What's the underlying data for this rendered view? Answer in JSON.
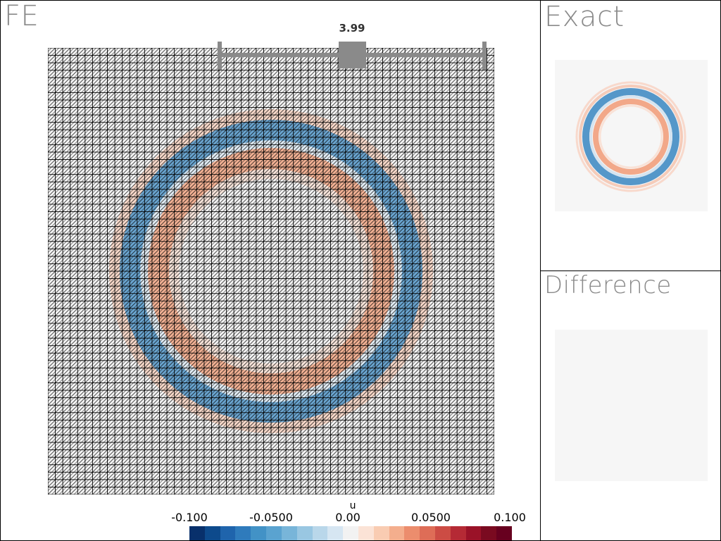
{
  "fe_panel": {
    "title": "FE"
  },
  "exact_panel": {
    "title": "Exact"
  },
  "difference_panel": {
    "title": "Difference"
  },
  "time_slider": {
    "value_label": "3.99"
  },
  "colorbar": {
    "title": "u",
    "tick_labels": [
      "-0.100",
      "-0.0500",
      "0.00",
      "0.0500",
      "0.100"
    ],
    "colors": [
      "#08306b",
      "#0d4a8c",
      "#1f64ac",
      "#2f7bbc",
      "#4292c6",
      "#5aa3d0",
      "#78b5d9",
      "#99c7e2",
      "#b9d7ea",
      "#d6e6f2",
      "#f2f2f2",
      "#fbe3d6",
      "#f9ccb2",
      "#f4ae8d",
      "#ec8d6d",
      "#de6d57",
      "#cc4c44",
      "#b52a35",
      "#9a1228",
      "#7a0a20",
      "#67001f"
    ]
  },
  "fields": {
    "ring_positive_color": "#f4ae8d",
    "ring_negative_color": "#4f96c8",
    "background_color": "#f4f4f4",
    "mesh_color": "#000000"
  }
}
